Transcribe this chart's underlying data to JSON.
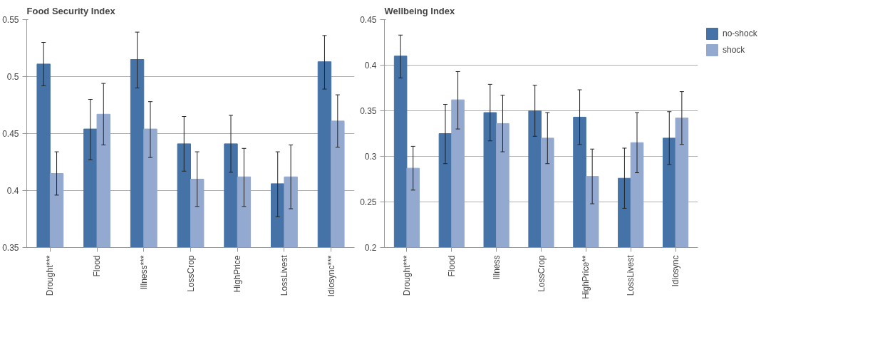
{
  "chart_data": [
    {
      "type": "bar",
      "title": "Food Security Index",
      "categories": [
        "Drought***",
        "Flood",
        "Illness***",
        "LossCrop",
        "HighPrice",
        "LossLivest",
        "Idiosync***"
      ],
      "ylim": [
        0.35,
        0.55
      ],
      "yticks": [
        0.35,
        0.4,
        0.45,
        0.5,
        0.55
      ],
      "grid": "y",
      "series": [
        {
          "color": "#4572a7",
          "values": [
            0.511,
            0.454,
            0.515,
            0.441,
            0.441,
            0.406,
            0.513
          ],
          "errors": [
            [
              0.492,
              0.53
            ],
            [
              0.427,
              0.48
            ],
            [
              0.49,
              0.539
            ],
            [
              0.417,
              0.465
            ],
            [
              0.416,
              0.466
            ],
            [
              0.377,
              0.434
            ],
            [
              0.489,
              0.536
            ]
          ]
        },
        {
          "color": "#93a9cf",
          "values": [
            0.415,
            0.467,
            0.454,
            0.41,
            0.412,
            0.412,
            0.461
          ],
          "errors": [
            [
              0.396,
              0.434
            ],
            [
              0.44,
              0.494
            ],
            [
              0.429,
              0.478
            ],
            [
              0.386,
              0.434
            ],
            [
              0.386,
              0.437
            ],
            [
              0.384,
              0.44
            ],
            [
              0.438,
              0.484
            ]
          ]
        }
      ]
    },
    {
      "type": "bar",
      "title": "Wellbeing Index",
      "categories": [
        "Drought***",
        "Flood",
        "Illness",
        "LossCrop",
        "HighPrice**",
        "LossLivest",
        "Idiosync"
      ],
      "ylim": [
        0.2,
        0.45
      ],
      "yticks": [
        0.2,
        0.25,
        0.3,
        0.35,
        0.4,
        0.45
      ],
      "grid": "y",
      "legend": "right",
      "series": [
        {
          "name": "no-shock",
          "color": "#4572a7",
          "values": [
            0.41,
            0.325,
            0.348,
            0.35,
            0.343,
            0.276,
            0.32
          ],
          "errors": [
            [
              0.386,
              0.433
            ],
            [
              0.292,
              0.357
            ],
            [
              0.317,
              0.379
            ],
            [
              0.322,
              0.378
            ],
            [
              0.313,
              0.373
            ],
            [
              0.243,
              0.309
            ],
            [
              0.291,
              0.349
            ]
          ]
        },
        {
          "name": "shock",
          "color": "#93a9cf",
          "values": [
            0.287,
            0.362,
            0.336,
            0.32,
            0.278,
            0.315,
            0.342
          ],
          "errors": [
            [
              0.263,
              0.311
            ],
            [
              0.33,
              0.393
            ],
            [
              0.305,
              0.367
            ],
            [
              0.292,
              0.348
            ],
            [
              0.248,
              0.308
            ],
            [
              0.282,
              0.348
            ],
            [
              0.313,
              0.371
            ]
          ]
        }
      ]
    }
  ]
}
